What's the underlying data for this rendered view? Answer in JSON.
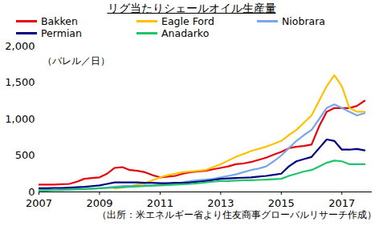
{
  "chart_data": {
    "type": "line",
    "title": "リグ当たりシェールオイル生産量",
    "y_label": "（バレル／日）",
    "caption": "（出所：米エネルギー省より住友商事グローバルリサーチ作成）",
    "legend": "top",
    "grid": false,
    "xlim": [
      2007,
      2018
    ],
    "xticks": [
      2007,
      2009,
      2011,
      2013,
      2015,
      2017
    ],
    "ylim": [
      0,
      2000
    ],
    "yticks": [
      0,
      500,
      {
        "value": 1000,
        "label": "1,000"
      },
      {
        "value": 1500,
        "label": "1,500"
      },
      {
        "value": 2000,
        "label": "2,000"
      }
    ],
    "x": [
      2007,
      2007.25,
      2007.5,
      2007.75,
      2008,
      2008.25,
      2008.5,
      2008.75,
      2009,
      2009.25,
      2009.5,
      2009.75,
      2010,
      2010.25,
      2010.5,
      2010.75,
      2011,
      2011.25,
      2011.5,
      2011.75,
      2012,
      2012.25,
      2012.5,
      2012.75,
      2013,
      2013.25,
      2013.5,
      2013.75,
      2014,
      2014.25,
      2014.5,
      2014.75,
      2015,
      2015.25,
      2015.5,
      2015.75,
      2016,
      2016.25,
      2016.5,
      2016.75,
      2017,
      2017.25,
      2017.5,
      2017.75
    ],
    "series": [
      {
        "name": "Bakken",
        "color": "#e8000b",
        "values": [
          100,
          100,
          100,
          105,
          110,
          140,
          180,
          190,
          200,
          250,
          330,
          340,
          300,
          290,
          270,
          230,
          200,
          210,
          220,
          250,
          270,
          280,
          290,
          310,
          330,
          350,
          380,
          390,
          410,
          440,
          470,
          510,
          550,
          600,
          620,
          630,
          650,
          900,
          1100,
          1150,
          1150,
          1150,
          1180,
          1250
        ]
      },
      {
        "name": "Eagle Ford",
        "color": "#ffc000",
        "values": [
          null,
          null,
          null,
          null,
          null,
          null,
          null,
          null,
          null,
          null,
          50,
          60,
          80,
          100,
          120,
          160,
          200,
          230,
          250,
          270,
          280,
          290,
          300,
          340,
          380,
          430,
          480,
          520,
          560,
          590,
          620,
          660,
          700,
          780,
          850,
          950,
          1050,
          1250,
          1450,
          1600,
          1450,
          1150,
          1100,
          1100
        ]
      },
      {
        "name": "Niobrara",
        "color": "#7aa6e8",
        "values": [
          30,
          30,
          30,
          35,
          35,
          40,
          40,
          45,
          50,
          60,
          70,
          80,
          80,
          80,
          90,
          90,
          100,
          110,
          120,
          130,
          150,
          160,
          170,
          180,
          200,
          220,
          240,
          270,
          300,
          320,
          350,
          420,
          500,
          600,
          700,
          780,
          850,
          1000,
          1150,
          1200,
          1150,
          1100,
          1050,
          1080
        ]
      },
      {
        "name": "Permian",
        "color": "#00007f",
        "values": [
          50,
          50,
          55,
          55,
          60,
          65,
          70,
          80,
          90,
          110,
          130,
          130,
          130,
          130,
          125,
          125,
          120,
          120,
          125,
          125,
          130,
          140,
          150,
          165,
          180,
          185,
          190,
          195,
          200,
          210,
          220,
          235,
          250,
          350,
          420,
          450,
          480,
          600,
          720,
          700,
          580,
          580,
          590,
          570
        ]
      },
      {
        "name": "Anadarko",
        "color": "#1fc46b",
        "values": [
          20,
          20,
          25,
          25,
          30,
          35,
          40,
          45,
          50,
          55,
          60,
          65,
          70,
          75,
          80,
          85,
          90,
          95,
          100,
          105,
          110,
          120,
          130,
          140,
          150,
          150,
          155,
          160,
          160,
          165,
          170,
          175,
          180,
          220,
          250,
          280,
          300,
          350,
          400,
          430,
          420,
          380,
          380,
          380
        ]
      }
    ]
  }
}
